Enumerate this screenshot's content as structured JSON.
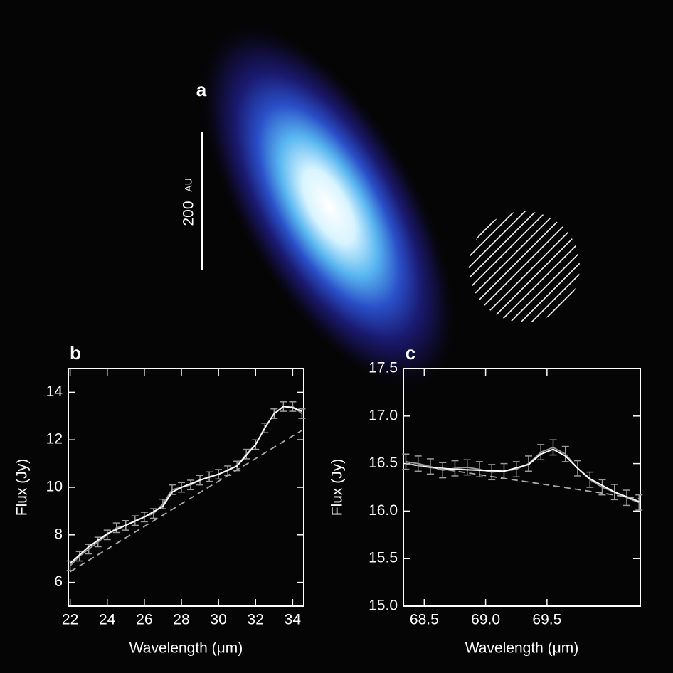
{
  "image": {
    "label": "a",
    "scale_value": 200,
    "scale_unit": "AU"
  },
  "chart_data": [
    {
      "type": "line",
      "label": "b",
      "xlabel": "Wavelength (μm)",
      "ylabel": "Flux (Jy)",
      "xlim": [
        21.9,
        34.6
      ],
      "ylim": [
        5,
        15
      ],
      "xticks": [
        22,
        24,
        26,
        28,
        30,
        32,
        34
      ],
      "yticks": [
        6,
        8,
        10,
        12,
        14
      ],
      "series": [
        {
          "color": "#9a9a9a",
          "line_style": "errorbar",
          "x": [
            22,
            22.5,
            23,
            23.5,
            24,
            24.5,
            25,
            25.5,
            26,
            26.5,
            27,
            27.5,
            28,
            28.5,
            29,
            29.5,
            30,
            30.5,
            31,
            31.5,
            32,
            32.5,
            33,
            33.5,
            34,
            34.5
          ],
          "values": [
            6.7,
            7.1,
            7.4,
            7.7,
            8.0,
            8.3,
            8.4,
            8.6,
            8.75,
            8.9,
            9.3,
            9.9,
            10.0,
            10.1,
            10.3,
            10.45,
            10.55,
            10.7,
            10.9,
            11.4,
            11.8,
            12.5,
            13.1,
            13.4,
            13.4,
            13.1
          ],
          "errors": [
            0.2,
            0.2,
            0.2,
            0.2,
            0.2,
            0.2,
            0.2,
            0.2,
            0.2,
            0.2,
            0.2,
            0.2,
            0.2,
            0.2,
            0.2,
            0.2,
            0.2,
            0.2,
            0.2,
            0.2,
            0.2,
            0.2,
            0.2,
            0.2,
            0.2,
            0.2
          ]
        },
        {
          "color": "#ffffff",
          "line_style": "solid",
          "x": [
            22,
            23,
            24,
            25,
            26,
            27,
            27.5,
            28,
            29,
            30,
            31,
            31.5,
            32,
            32.5,
            33,
            33.5,
            34,
            34.5
          ],
          "values": [
            6.8,
            7.5,
            8.05,
            8.4,
            8.75,
            9.2,
            9.8,
            10.0,
            10.3,
            10.55,
            10.9,
            11.35,
            11.8,
            12.5,
            13.1,
            13.4,
            13.35,
            13.2
          ]
        },
        {
          "color": "#aaaaaa",
          "line_style": "dashed",
          "x": [
            22,
            34.5
          ],
          "values": [
            6.45,
            12.4
          ]
        }
      ]
    },
    {
      "type": "line",
      "label": "c",
      "xlabel": "Wavelength (μm)",
      "ylabel": "Flux (Jy)",
      "xlim": [
        68.33,
        70.26
      ],
      "ylim": [
        15,
        17.5
      ],
      "xticks": [
        68.5,
        {
          "value": 69,
          "label": "69.0"
        },
        69.5
      ],
      "yticks": [
        {
          "value": 15,
          "label": "15.0"
        },
        15.5,
        {
          "value": 16,
          "label": "16.0"
        },
        16.5,
        {
          "value": 17,
          "label": "17.0"
        },
        17.5
      ],
      "series": [
        {
          "color": "#9a9a9a",
          "line_style": "errorbar",
          "x": [
            68.35,
            68.45,
            68.55,
            68.65,
            68.75,
            68.85,
            68.95,
            69.05,
            69.15,
            69.25,
            69.35,
            69.45,
            69.55,
            69.65,
            69.75,
            69.85,
            69.95,
            70.05,
            70.15,
            70.25
          ],
          "values": [
            16.52,
            16.5,
            16.47,
            16.43,
            16.45,
            16.46,
            16.44,
            16.41,
            16.42,
            16.44,
            16.5,
            16.62,
            16.67,
            16.6,
            16.45,
            16.33,
            16.25,
            16.2,
            16.14,
            16.09
          ],
          "errors": [
            0.08,
            0.08,
            0.08,
            0.08,
            0.08,
            0.08,
            0.08,
            0.08,
            0.08,
            0.08,
            0.08,
            0.08,
            0.08,
            0.08,
            0.08,
            0.08,
            0.08,
            0.08,
            0.08,
            0.08
          ]
        },
        {
          "color": "#ffffff",
          "line_style": "solid",
          "x": [
            68.35,
            68.55,
            68.75,
            68.95,
            69.15,
            69.35,
            69.45,
            69.55,
            69.65,
            69.75,
            69.85,
            70.05,
            70.25
          ],
          "values": [
            16.5,
            16.46,
            16.44,
            16.43,
            16.42,
            16.49,
            16.6,
            16.65,
            16.58,
            16.45,
            16.34,
            16.2,
            16.1
          ]
        },
        {
          "color": "#aaaaaa",
          "line_style": "dashed",
          "x": [
            68.35,
            70.25
          ],
          "values": [
            16.5,
            16.13
          ]
        }
      ]
    }
  ]
}
